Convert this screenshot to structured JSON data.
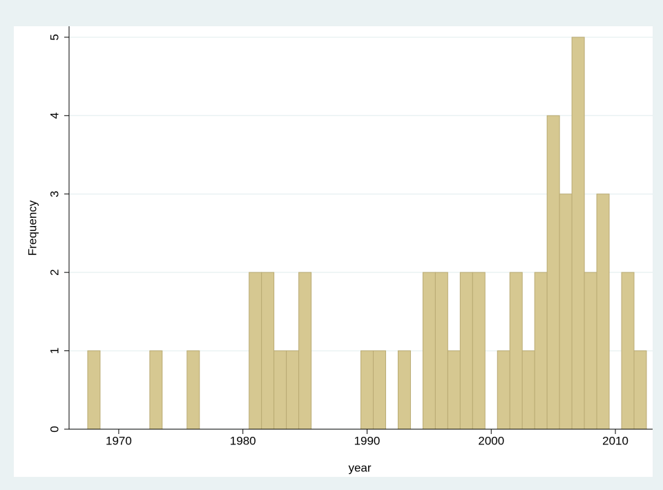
{
  "chart_data": {
    "type": "histogram",
    "x_label": "year",
    "y_label": "Frequency",
    "bins": [
      1967.5,
      1968.5,
      1969.5,
      1970.5,
      1971.5,
      1972.5,
      1973.5,
      1974.5,
      1975.5,
      1976.5,
      1977.5,
      1978.5,
      1979.5,
      1980.5,
      1981.5,
      1982.5,
      1983.5,
      1984.5,
      1985.5,
      1986.5,
      1987.5,
      1988.5,
      1989.5,
      1990.5,
      1991.5,
      1992.5,
      1993.5,
      1994.5,
      1995.5,
      1996.5,
      1997.5,
      1998.5,
      1999.5,
      2000.5,
      2001.5,
      2002.5,
      2003.5,
      2004.5,
      2005.5,
      2006.5,
      2007.5,
      2008.5,
      2009.5,
      2010.5,
      2011.5,
      2012.5
    ],
    "counts": [
      1,
      0,
      0,
      0,
      0,
      1,
      0,
      0,
      1,
      0,
      0,
      0,
      0,
      2,
      2,
      1,
      1,
      2,
      0,
      0,
      0,
      0,
      1,
      1,
      0,
      1,
      0,
      2,
      2,
      1,
      2,
      2,
      0,
      1,
      2,
      1,
      2,
      4,
      3,
      5,
      2,
      3,
      0,
      2,
      1
    ],
    "color": "#d6c891",
    "edge_color": "#b9aa73",
    "xlim": [
      1966,
      2013
    ],
    "xticks": [
      1970,
      1980,
      1990,
      2000,
      2010
    ],
    "ylim": [
      0,
      5.14
    ],
    "yticks": [
      0,
      1,
      2,
      3,
      4,
      5
    ],
    "grid": true
  }
}
